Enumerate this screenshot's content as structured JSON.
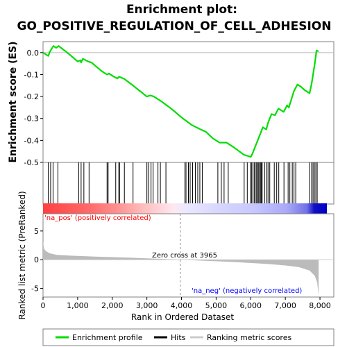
{
  "chart_data": {
    "type": "line",
    "title_line1": "Enrichment plot:",
    "title_line2": "GO_POSITIVE_REGULATION_OF_CELL_ADHESION",
    "xlabel": "Rank in Ordered Dataset",
    "ylabel_es": "Enrichment score (ES)",
    "ylabel_metric": "Ranked list metric (PreRanked)",
    "xlim": [
      0,
      8400
    ],
    "es_ylim": [
      -0.5,
      0.05
    ],
    "metric_ylim": [
      -6.5,
      8
    ],
    "x_ticks": [
      "0",
      "1,000",
      "2,000",
      "3,000",
      "4,000",
      "5,000",
      "6,000",
      "7,000",
      "8,000"
    ],
    "x_tick_values": [
      0,
      1000,
      2000,
      3000,
      4000,
      5000,
      6000,
      7000,
      8000
    ],
    "es_ticks": [
      "0.0",
      "-0.1",
      "-0.2",
      "-0.3",
      "-0.4",
      "-0.5"
    ],
    "es_tick_values": [
      0.0,
      -0.1,
      -0.2,
      -0.3,
      -0.4,
      -0.5
    ],
    "metric_ticks": [
      "5",
      "0",
      "-5"
    ],
    "metric_tick_values": [
      5,
      0,
      -5
    ],
    "zero_cross_label": "Zero cross at 3965",
    "zero_cross": 3965,
    "pos_label": "'na_pos' (positively correlated)",
    "neg_label": "'na_neg' (negatively correlated)",
    "legend": [
      "Enrichment profile",
      "Hits",
      "Ranking metric scores"
    ],
    "colors": {
      "profile": "#00dd00",
      "hits": "#000000",
      "metric": "#bbbbbb",
      "pos_text": "#ff0000",
      "neg_text": "#0000ff",
      "zero_line": "#888888"
    },
    "series": [
      {
        "name": "Enrichment profile",
        "x": [
          0,
          150,
          200,
          300,
          380,
          450,
          700,
          1000,
          1080,
          1100,
          1150,
          1300,
          1400,
          1700,
          1850,
          1900,
          2050,
          2150,
          2200,
          2350,
          2600,
          2800,
          3000,
          3100,
          3200,
          3400,
          3700,
          4000,
          4300,
          4550,
          4700,
          4900,
          5100,
          5300,
          5350,
          5500,
          5800,
          5900,
          6000,
          6050,
          6100,
          6200,
          6300,
          6350,
          6450,
          6500,
          6600,
          6700,
          6800,
          6950,
          7050,
          7100,
          7200,
          7250,
          7350,
          7450,
          7550,
          7700,
          7760,
          7800,
          7850,
          7900,
          7960
        ],
        "values": [
          0.0,
          -0.015,
          0.005,
          0.03,
          0.022,
          0.03,
          0.0,
          -0.04,
          -0.035,
          -0.045,
          -0.028,
          -0.04,
          -0.045,
          -0.085,
          -0.1,
          -0.095,
          -0.11,
          -0.118,
          -0.11,
          -0.12,
          -0.15,
          -0.175,
          -0.2,
          -0.195,
          -0.2,
          -0.22,
          -0.255,
          -0.295,
          -0.33,
          -0.35,
          -0.36,
          -0.39,
          -0.41,
          -0.41,
          -0.415,
          -0.43,
          -0.465,
          -0.47,
          -0.475,
          -0.46,
          -0.44,
          -0.4,
          -0.36,
          -0.34,
          -0.35,
          -0.32,
          -0.28,
          -0.285,
          -0.255,
          -0.27,
          -0.24,
          -0.25,
          -0.2,
          -0.175,
          -0.145,
          -0.155,
          -0.17,
          -0.185,
          -0.14,
          -0.1,
          -0.05,
          0.01,
          0.005
        ]
      }
    ],
    "hits": [
      150,
      220,
      290,
      430,
      1030,
      1100,
      1180,
      1330,
      1850,
      1880,
      2100,
      2190,
      2210,
      2350,
      2600,
      3000,
      3050,
      3120,
      3180,
      3320,
      3390,
      3550,
      4100,
      4130,
      4200,
      4250,
      4320,
      4400,
      4470,
      4530,
      4600,
      5050,
      5150,
      5230,
      5350,
      5810,
      5900,
      6000,
      6020,
      6060,
      6100,
      6130,
      6170,
      6200,
      6230,
      6260,
      6290,
      6310,
      6330,
      6400,
      6460,
      6500,
      6550,
      6680,
      6750,
      6810,
      6960,
      7080,
      7130,
      7200,
      7250,
      7300,
      7700,
      7760,
      7800,
      7840,
      7880,
      7920
    ],
    "metric_profile": {
      "x": [
        0,
        30,
        80,
        200,
        400,
        800,
        1500,
        2500,
        3500,
        3965,
        4500,
        5500,
        6500,
        7000,
        7400,
        7700,
        7850,
        7920,
        7960
      ],
      "values": [
        3.2,
        1.9,
        1.5,
        1.1,
        0.85,
        0.7,
        0.55,
        0.35,
        0.12,
        0.0,
        -0.15,
        -0.4,
        -0.75,
        -1.0,
        -1.3,
        -1.9,
        -2.8,
        -4.0,
        -6.3
      ]
    }
  }
}
